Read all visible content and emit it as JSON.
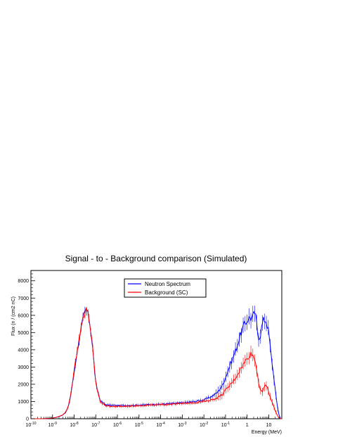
{
  "chart_data": {
    "type": "line",
    "title": "Signal - to - Background comparison (Simulated)",
    "xlabel": "Energy (MeV)",
    "ylabel": "Flux (n / (cm2 nC)",
    "x_scale": "log",
    "xlim": [
      1e-10,
      40
    ],
    "ylim": [
      0,
      8600
    ],
    "x_tick_labels": [
      {
        "base": "10",
        "exp": "-10",
        "value": 1e-10
      },
      {
        "base": "10",
        "exp": "-9",
        "value": 1e-09
      },
      {
        "base": "10",
        "exp": "-8",
        "value": 1e-08
      },
      {
        "base": "10",
        "exp": "-7",
        "value": 1e-07
      },
      {
        "base": "10",
        "exp": "-6",
        "value": 1e-06
      },
      {
        "base": "10",
        "exp": "-5",
        "value": 1e-05
      },
      {
        "base": "10",
        "exp": "-4",
        "value": 0.0001
      },
      {
        "base": "10",
        "exp": "-3",
        "value": 0.001
      },
      {
        "base": "10",
        "exp": "-2",
        "value": 0.01
      },
      {
        "base": "10",
        "exp": "-1",
        "value": 0.1
      },
      {
        "base": "1",
        "exp": "",
        "value": 1
      },
      {
        "base": "10",
        "exp": "",
        "value": 10
      }
    ],
    "y_ticks": [
      0,
      1000,
      2000,
      3000,
      4000,
      5000,
      6000,
      7000,
      8000
    ],
    "y_tick_labels": [
      "0",
      "1000",
      "2000",
      "3000",
      "4000",
      "5000",
      "6000",
      "7000",
      "8000"
    ],
    "grid": false,
    "legend_position": "top-center",
    "series": [
      {
        "name": "Neutron Spectrum",
        "color": "#0000ff",
        "points": [
          [
            1e-10,
            0
          ],
          [
            3e-10,
            0
          ],
          [
            6e-10,
            10
          ],
          [
            1e-09,
            40
          ],
          [
            1.5e-09,
            80
          ],
          [
            2e-09,
            130
          ],
          [
            3e-09,
            220
          ],
          [
            4e-09,
            360
          ],
          [
            5e-09,
            600
          ],
          [
            6e-09,
            950
          ],
          [
            7e-09,
            1400
          ],
          [
            8e-09,
            1900
          ],
          [
            1e-08,
            2700
          ],
          [
            1.3e-08,
            3700
          ],
          [
            1.6e-08,
            4400
          ],
          [
            2e-08,
            5000
          ],
          [
            2.5e-08,
            5700
          ],
          [
            3e-08,
            6100
          ],
          [
            3.5e-08,
            6300
          ],
          [
            4e-08,
            6200
          ],
          [
            5e-08,
            5800
          ],
          [
            6e-08,
            5000
          ],
          [
            7e-08,
            4200
          ],
          [
            8e-08,
            3400
          ],
          [
            1e-07,
            2000
          ],
          [
            1.3e-07,
            1500
          ],
          [
            1.6e-07,
            1050
          ],
          [
            2e-07,
            950
          ],
          [
            3e-07,
            800
          ],
          [
            5e-07,
            780
          ],
          [
            1e-06,
            760
          ],
          [
            3e-06,
            770
          ],
          [
            1e-05,
            790
          ],
          [
            3e-05,
            820
          ],
          [
            0.0001,
            840
          ],
          [
            0.0003,
            880
          ],
          [
            0.001,
            920
          ],
          [
            0.002,
            960
          ],
          [
            0.005,
            1020
          ],
          [
            0.01,
            1100
          ],
          [
            0.02,
            1250
          ],
          [
            0.04,
            1500
          ],
          [
            0.07,
            1900
          ],
          [
            0.1,
            2400
          ],
          [
            0.15,
            3000
          ],
          [
            0.2,
            3400
          ],
          [
            0.3,
            4000
          ],
          [
            0.4,
            4500
          ],
          [
            0.5,
            4900
          ],
          [
            0.7,
            5400
          ],
          [
            1,
            5700
          ],
          [
            1.3,
            5900
          ],
          [
            1.6,
            5800
          ],
          [
            2,
            6000
          ],
          [
            2.3,
            6200
          ],
          [
            2.7,
            5600
          ],
          [
            3,
            5000
          ],
          [
            3.5,
            4700
          ],
          [
            4,
            4800
          ],
          [
            5,
            5500
          ],
          [
            6,
            5800
          ],
          [
            7,
            5700
          ],
          [
            8,
            5600
          ],
          [
            10,
            5000
          ],
          [
            12,
            4000
          ],
          [
            15,
            3000
          ],
          [
            18,
            2200
          ],
          [
            22,
            1200
          ],
          [
            26,
            600
          ],
          [
            30,
            200
          ],
          [
            35,
            0
          ]
        ]
      },
      {
        "name": "Background (SC)",
        "color": "#ff0000",
        "points": [
          [
            1e-10,
            0
          ],
          [
            3e-10,
            0
          ],
          [
            6e-10,
            10
          ],
          [
            1e-09,
            40
          ],
          [
            1.5e-09,
            80
          ],
          [
            2e-09,
            140
          ],
          [
            3e-09,
            230
          ],
          [
            4e-09,
            380
          ],
          [
            5e-09,
            620
          ],
          [
            6e-09,
            980
          ],
          [
            7e-09,
            1450
          ],
          [
            8e-09,
            1950
          ],
          [
            1e-08,
            2800
          ],
          [
            1.3e-08,
            3800
          ],
          [
            1.6e-08,
            4500
          ],
          [
            2e-08,
            5100
          ],
          [
            2.5e-08,
            5800
          ],
          [
            3e-08,
            6200
          ],
          [
            3.5e-08,
            6400
          ],
          [
            4e-08,
            6250
          ],
          [
            5e-08,
            5800
          ],
          [
            6e-08,
            5000
          ],
          [
            7e-08,
            4200
          ],
          [
            8e-08,
            3400
          ],
          [
            1e-07,
            2000
          ],
          [
            1.3e-07,
            1450
          ],
          [
            1.6e-07,
            1000
          ],
          [
            2e-07,
            880
          ],
          [
            3e-07,
            760
          ],
          [
            5e-07,
            720
          ],
          [
            1e-06,
            710
          ],
          [
            3e-06,
            730
          ],
          [
            1e-05,
            760
          ],
          [
            3e-05,
            790
          ],
          [
            0.0001,
            810
          ],
          [
            0.0003,
            850
          ],
          [
            0.001,
            880
          ],
          [
            0.002,
            910
          ],
          [
            0.005,
            950
          ],
          [
            0.01,
            1000
          ],
          [
            0.02,
            1080
          ],
          [
            0.04,
            1200
          ],
          [
            0.07,
            1400
          ],
          [
            0.1,
            1650
          ],
          [
            0.15,
            1900
          ],
          [
            0.2,
            2100
          ],
          [
            0.3,
            2400
          ],
          [
            0.4,
            2700
          ],
          [
            0.5,
            2900
          ],
          [
            0.7,
            3200
          ],
          [
            1,
            3500
          ],
          [
            1.3,
            3700
          ],
          [
            1.6,
            3800
          ],
          [
            2,
            3600
          ],
          [
            2.5,
            3200
          ],
          [
            3,
            2600
          ],
          [
            3.5,
            2000
          ],
          [
            4,
            1700
          ],
          [
            5,
            1500
          ],
          [
            6,
            1800
          ],
          [
            7,
            2000
          ],
          [
            8,
            1900
          ],
          [
            10,
            1500
          ],
          [
            12,
            1200
          ],
          [
            15,
            900
          ],
          [
            18,
            600
          ],
          [
            22,
            350
          ],
          [
            26,
            150
          ],
          [
            30,
            50
          ],
          [
            35,
            0
          ]
        ]
      }
    ]
  }
}
